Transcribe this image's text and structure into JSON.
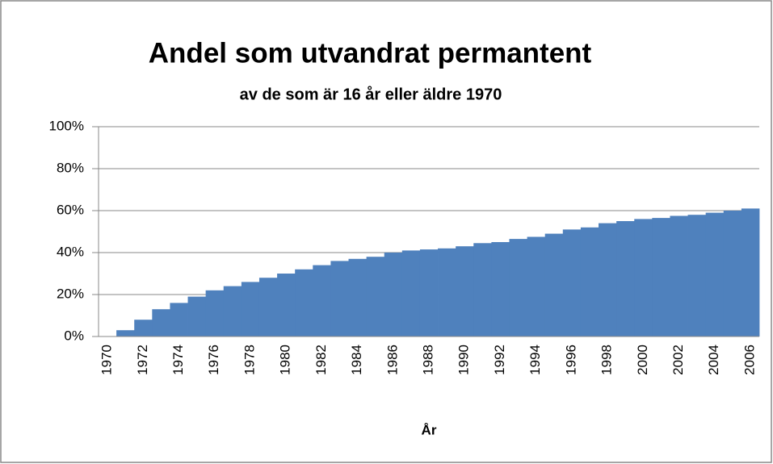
{
  "chart_data": {
    "type": "bar",
    "title": "Andel som utvandrat permantent",
    "subtitle": "av de som är 16 år eller äldre 1970",
    "x_label": "År",
    "color": "#4f81bd",
    "grid": true,
    "categories": [
      "1970",
      null,
      "1972",
      null,
      "1974",
      null,
      "1976",
      null,
      "1978",
      null,
      "1980",
      null,
      "1982",
      null,
      "1984",
      null,
      "1986",
      null,
      "1988",
      null,
      "1990",
      null,
      "1992",
      null,
      "1994",
      null,
      "1996",
      null,
      "1998",
      null,
      "2000",
      null,
      "2002",
      null,
      "2004",
      null,
      "2006"
    ],
    "values": [
      0,
      3,
      8,
      13,
      16,
      19,
      22,
      24,
      26,
      28,
      30,
      32,
      34,
      36,
      37,
      38,
      40,
      41,
      41.5,
      42,
      43,
      44.5,
      45,
      46.5,
      47.5,
      49,
      51,
      52,
      54,
      55,
      56,
      56.5,
      57.5,
      58,
      59,
      60,
      61
    ],
    "ylim": [
      0,
      100
    ],
    "yticks": [
      {
        "value": 0,
        "label": "0%"
      },
      {
        "value": 20,
        "label": "20%"
      },
      {
        "value": 40,
        "label": "40%"
      },
      {
        "value": 60,
        "label": "60%"
      },
      {
        "value": 80,
        "label": "80%"
      },
      {
        "value": 100,
        "label": "100%"
      }
    ]
  }
}
